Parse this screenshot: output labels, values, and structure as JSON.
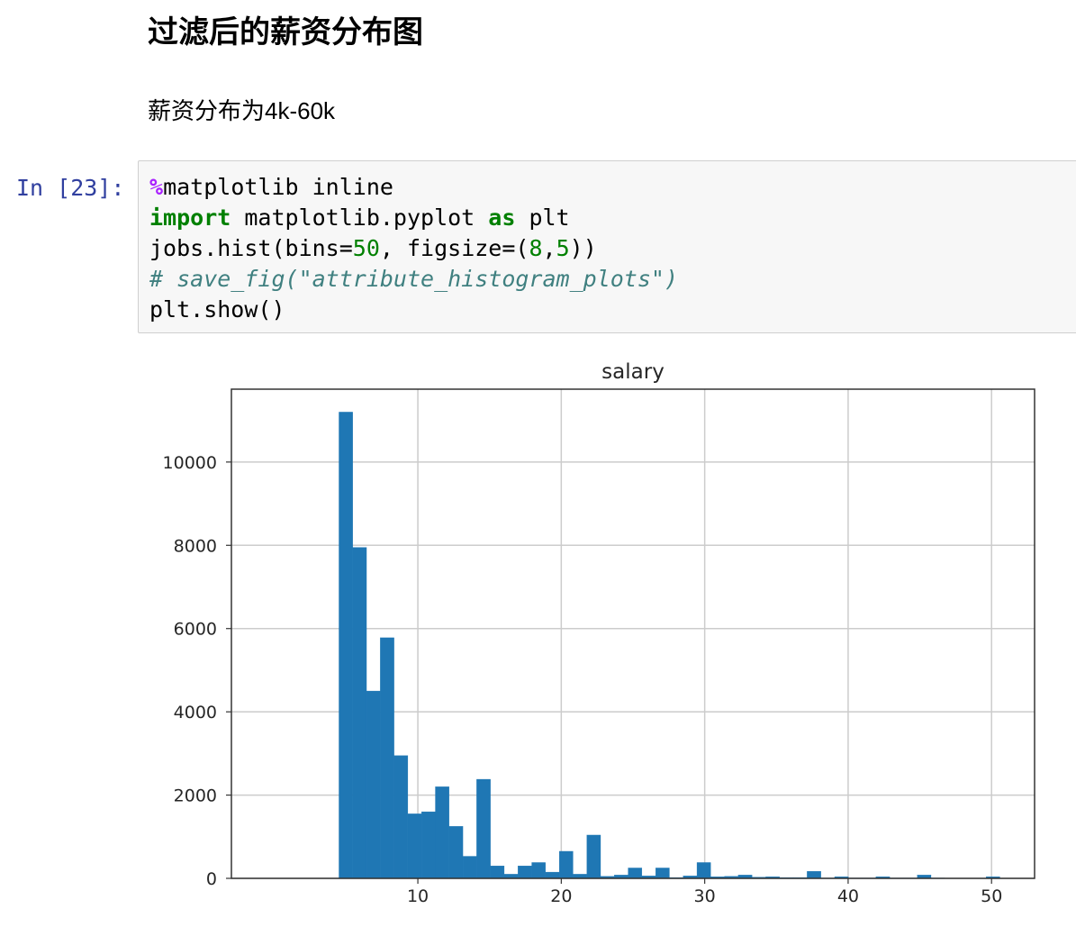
{
  "markdown": {
    "title": "过滤后的薪资分布图",
    "text": "薪资分布为4k-60k"
  },
  "cell": {
    "prompt": "In [23]:",
    "code": {
      "magic_pct": "%",
      "magic_rest": "matplotlib inline",
      "kw_import": "import",
      "module": " matplotlib.pyplot ",
      "kw_as": "as",
      "alias": " plt",
      "hist_prefix": "jobs.hist(bins=",
      "bins": "50",
      "hist_mid": ", figsize=(",
      "fig_w": "8",
      "comma": ",",
      "fig_h": "5",
      "hist_end": "))",
      "comment": "# save_fig(\"attribute_histogram_plots\")",
      "show": "plt.show()"
    }
  },
  "colors": {
    "bar": "#1f77b4",
    "grid": "#cccccc",
    "prompt": "#303f9f",
    "keyword": "#008000",
    "magic": "#aa22ff",
    "comment": "#408080"
  },
  "chart_data": {
    "type": "bar",
    "title": "salary",
    "xlabel": "",
    "ylabel": "",
    "xlim": [
      -3.0,
      53.0
    ],
    "ylim": [
      0,
      11750
    ],
    "grid": true,
    "xticks": [
      10,
      20,
      30,
      40,
      50
    ],
    "xtick_labels": [
      "10",
      "20",
      "30",
      "40",
      "50"
    ],
    "yticks": [
      0,
      2000,
      4000,
      6000,
      8000,
      10000
    ],
    "ytick_labels": [
      "0",
      "2000",
      "4000",
      "6000",
      "8000",
      "10000"
    ],
    "bin_start": 4.5,
    "bin_width": 0.96,
    "values": [
      11200,
      7950,
      4500,
      5780,
      2950,
      1550,
      1600,
      2200,
      1250,
      530,
      2380,
      300,
      100,
      300,
      380,
      150,
      650,
      100,
      1040,
      50,
      80,
      250,
      60,
      250,
      20,
      60,
      380,
      40,
      50,
      80,
      30,
      40,
      20,
      20,
      170,
      10,
      40,
      10,
      10,
      40,
      10,
      10,
      80,
      10,
      5,
      5,
      5,
      40,
      5,
      5
    ]
  }
}
